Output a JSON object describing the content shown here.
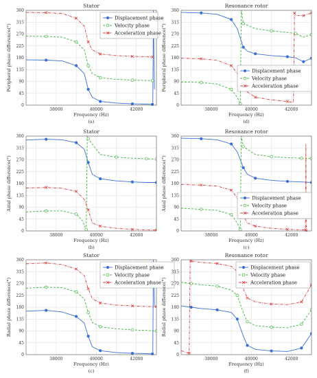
{
  "figure": {
    "colors": {
      "Displacement phase": "#3a6fd8",
      "Velocity phase": "#3cb43c",
      "Acceleration phase": "#d83c3c"
    }
  },
  "chart_data": [
    {
      "type": "line",
      "label": "(a)",
      "title": "Stator",
      "xlabel": "Frequency (Hz)",
      "ylabel": "Peripheral phase difference(°)",
      "xlim": [
        36500,
        43000
      ],
      "ylim": [
        0,
        360
      ],
      "xticks": [
        38000,
        40000,
        42000
      ],
      "yticks": [
        0,
        45,
        90,
        135,
        180,
        225,
        270,
        315,
        360
      ],
      "xtick_labels": [
        "38000",
        "40000",
        "42000"
      ],
      "ytick_labels": [
        "0",
        "45",
        "90",
        "135",
        "180",
        "225",
        "270",
        "315",
        "360"
      ],
      "grid": true,
      "legend_position": "top-right",
      "legend": [
        "Displacement phase",
        "Velocity phase",
        "Acceleration phase"
      ],
      "series": [
        {
          "name": "Displacement phase",
          "style": "solid",
          "marker": "filled-circle",
          "x": [
            36500,
            37500,
            38300,
            39000,
            39400,
            39600,
            39800,
            40200,
            41000,
            41800,
            42500,
            42800
          ],
          "y": [
            172,
            171,
            168,
            150,
            120,
            60,
            30,
            14,
            8,
            5,
            4,
            3
          ],
          "extra": [
            [
              42820,
              3
            ],
            [
              42850,
              360
            ],
            [
              42880,
              160
            ],
            [
              42900,
              60
            ]
          ]
        },
        {
          "name": "Velocity phase",
          "style": "dashed",
          "marker": "open-circle",
          "x": [
            36500,
            37500,
            38300,
            39000,
            39400,
            39600,
            39800,
            40200,
            41000,
            41800,
            42500,
            42800
          ],
          "y": [
            262,
            261,
            258,
            240,
            210,
            150,
            120,
            104,
            98,
            95,
            94,
            93
          ]
        },
        {
          "name": "Acceleration phase",
          "style": "dashdot",
          "marker": "x",
          "x": [
            36500,
            37500,
            38300,
            39000,
            39400,
            39600,
            39800,
            40200,
            41000,
            41800,
            42500,
            42800
          ],
          "y": [
            352,
            351,
            348,
            330,
            300,
            240,
            210,
            194,
            188,
            185,
            184,
            183
          ]
        }
      ]
    },
    {
      "type": "line",
      "label": "(d)",
      "title": "Resonance rotor",
      "xlabel": "Frequency (Hz)",
      "ylabel": "Peripheral phase difference(°)",
      "xlim": [
        36500,
        43000
      ],
      "ylim": [
        0,
        360
      ],
      "xticks": [
        38000,
        40000,
        42000
      ],
      "yticks": [
        0,
        45,
        90,
        135,
        180,
        225,
        270,
        315,
        360
      ],
      "xtick_labels": [
        "38000",
        "40000",
        "42000"
      ],
      "ytick_labels": [
        "0",
        "45",
        "90",
        "135",
        "180",
        "225",
        "270",
        "315",
        "360"
      ],
      "grid": true,
      "legend_position": "right",
      "legend": [
        "Displacement phase",
        "Velocity phase",
        "Acceleration phase"
      ],
      "series": [
        {
          "name": "Displacement phase",
          "style": "solid",
          "marker": "filled-circle",
          "x": [
            36500,
            37500,
            38300,
            39000,
            39300,
            39600,
            39800,
            40200,
            41000,
            41800,
            42200,
            42600,
            43000
          ],
          "y": [
            352,
            350,
            345,
            325,
            290,
            220,
            205,
            195,
            188,
            184,
            180,
            165,
            178
          ]
        },
        {
          "name": "Velocity phase",
          "style": "dashed",
          "marker": "open-circle",
          "x": [
            36500,
            37500,
            38300,
            39000,
            39300,
            39450,
            39500,
            39600,
            40200,
            41000,
            41800,
            42200,
            42600,
            43000
          ],
          "y": [
            88,
            86,
            80,
            60,
            30,
            5,
            360,
            310,
            290,
            282,
            276,
            272,
            258,
            268
          ]
        },
        {
          "name": "Acceleration phase",
          "style": "dashdot",
          "marker": "x",
          "x": [
            36500,
            37500,
            38300,
            39000,
            39300,
            39500,
            39600,
            40200,
            41000,
            41800,
            42100,
            42150,
            42200,
            42600,
            43000
          ],
          "y": [
            178,
            176,
            170,
            150,
            120,
            90,
            60,
            30,
            20,
            14,
            10,
            350,
            340,
            340,
            350
          ]
        }
      ]
    },
    {
      "type": "line",
      "label": "(b)",
      "title": "Stator",
      "xlabel": "Frequency (Hz)",
      "ylabel": "Axial phase difference(°)",
      "xlim": [
        36500,
        43000
      ],
      "ylim": [
        0,
        360
      ],
      "xticks": [
        38000,
        40000,
        42000
      ],
      "yticks": [
        0,
        45,
        90,
        135,
        180,
        225,
        270,
        315,
        360
      ],
      "xtick_labels": [
        "38000",
        "40000",
        "42000"
      ],
      "ytick_labels": [
        "0",
        "45",
        "90",
        "135",
        "180",
        "225",
        "270",
        "315",
        "360"
      ],
      "grid": true,
      "legend_position": "none",
      "legend": [],
      "series": [
        {
          "name": "Displacement phase",
          "style": "solid",
          "marker": "filled-circle",
          "x": [
            36500,
            37500,
            38300,
            39000,
            39400,
            39600,
            39800,
            40200,
            41000,
            41800,
            42500,
            43000
          ],
          "y": [
            345,
            348,
            346,
            335,
            310,
            260,
            215,
            198,
            190,
            186,
            184,
            184
          ]
        },
        {
          "name": "Velocity phase",
          "style": "dashed",
          "marker": "open-circle",
          "x": [
            36500,
            37500,
            38300,
            39000,
            39300,
            39500,
            39550,
            39600,
            40200,
            41000,
            41800,
            42500,
            43000
          ],
          "y": [
            72,
            76,
            76,
            64,
            40,
            5,
            360,
            350,
            290,
            280,
            276,
            274,
            273
          ]
        },
        {
          "name": "Acceleration phase",
          "style": "dashdot",
          "marker": "x",
          "x": [
            36500,
            37500,
            38300,
            39000,
            39400,
            39600,
            39800,
            40200,
            41000,
            41800,
            42500,
            43000
          ],
          "y": [
            163,
            165,
            162,
            150,
            120,
            80,
            30,
            18,
            10,
            6,
            4,
            3
          ]
        }
      ]
    },
    {
      "type": "line",
      "label": "(c)",
      "title": "Resonance rotor",
      "xlabel": "Frequency (Hz)",
      "ylabel": "Axial phase difference(°)",
      "xlim": [
        36500,
        43000
      ],
      "ylim": [
        0,
        360
      ],
      "xticks": [
        38000,
        40000,
        42000
      ],
      "yticks": [
        0,
        45,
        90,
        135,
        180,
        225,
        270,
        315,
        360
      ],
      "xtick_labels": [
        "38000",
        "40000",
        "42000"
      ],
      "ytick_labels": [
        "0",
        "45",
        "90",
        "135",
        "180",
        "225",
        "270",
        "315",
        "360"
      ],
      "grid": true,
      "legend_position": "right",
      "legend": [
        "Displacement phase",
        "Velocity phase",
        "Acceleration phase"
      ],
      "series": [
        {
          "name": "Displacement phase",
          "style": "solid",
          "marker": "filled-circle",
          "x": [
            36500,
            37500,
            38300,
            39000,
            39300,
            39600,
            39800,
            40200,
            41000,
            41800,
            42500,
            43000
          ],
          "y": [
            352,
            350,
            346,
            330,
            300,
            240,
            215,
            200,
            192,
            188,
            186,
            184
          ]
        },
        {
          "name": "Velocity phase",
          "style": "dashed",
          "marker": "open-circle",
          "x": [
            36500,
            37500,
            38300,
            39000,
            39300,
            39450,
            39500,
            39600,
            40200,
            41000,
            41800,
            42500,
            43000
          ],
          "y": [
            86,
            82,
            78,
            62,
            30,
            5,
            360,
            320,
            290,
            282,
            278,
            276,
            275
          ]
        },
        {
          "name": "Acceleration phase",
          "style": "dashdot",
          "marker": "x",
          "x": [
            36500,
            37500,
            38300,
            39000,
            39300,
            39600,
            39800,
            40200,
            41000,
            41800,
            42500,
            42700,
            42720,
            42740
          ],
          "y": [
            176,
            174,
            170,
            155,
            125,
            60,
            30,
            18,
            10,
            6,
            4,
            4,
            330,
            0
          ]
        }
      ]
    },
    {
      "type": "line",
      "label": "(c)",
      "title": "Stator",
      "xlabel": "Frequency (Hz)",
      "ylabel": "Radial phase difference(°)",
      "xlim": [
        36500,
        43000
      ],
      "ylim": [
        0,
        360
      ],
      "xticks": [
        38000,
        40000,
        42000
      ],
      "yticks": [
        0,
        45,
        90,
        135,
        180,
        225,
        270,
        315,
        360
      ],
      "xtick_labels": [
        "38000",
        "40000",
        "42000"
      ],
      "ytick_labels": [
        "0",
        "45",
        "90",
        "135",
        "180",
        "225",
        "270",
        "315",
        "360"
      ],
      "grid": true,
      "legend_position": "top-right",
      "legend": [
        "Displacement phase",
        "Velocity phase",
        "Acceleration phase"
      ],
      "series": [
        {
          "name": "Displacement phase",
          "style": "solid",
          "marker": "filled-circle",
          "x": [
            36500,
            37500,
            38300,
            39000,
            39400,
            39600,
            39800,
            40200,
            41000,
            41800,
            42500,
            42800
          ],
          "y": [
            165,
            168,
            162,
            145,
            120,
            70,
            30,
            15,
            8,
            5,
            4,
            3
          ],
          "extra": [
            [
              42820,
              3
            ],
            [
              42850,
              360
            ],
            [
              42880,
              290
            ],
            [
              42900,
              185
            ]
          ]
        },
        {
          "name": "Velocity phase",
          "style": "dashed",
          "marker": "open-circle",
          "x": [
            36500,
            37500,
            38300,
            39000,
            39400,
            39600,
            39800,
            40200,
            41000,
            41800,
            42500,
            43000
          ],
          "y": [
            252,
            256,
            254,
            238,
            212,
            160,
            122,
            106,
            98,
            94,
            92,
            90
          ]
        },
        {
          "name": "Acceleration phase",
          "style": "dashdot",
          "marker": "x",
          "x": [
            36500,
            37500,
            38300,
            39000,
            39400,
            39600,
            39800,
            40200,
            41000,
            41800,
            42500,
            43000
          ],
          "y": [
            345,
            348,
            342,
            325,
            300,
            250,
            212,
            196,
            188,
            185,
            183,
            182
          ]
        }
      ]
    },
    {
      "type": "line",
      "label": "(f)",
      "title": "Resonance rotor",
      "xlabel": "Frequency (Hz)",
      "ylabel": "Radial phase difference(°)",
      "xlim": [
        36500,
        43000
      ],
      "ylim": [
        0,
        360
      ],
      "xticks": [
        38000,
        40000,
        42000
      ],
      "yticks": [
        0,
        45,
        90,
        135,
        180,
        225,
        270,
        315,
        360
      ],
      "xtick_labels": [
        "38000",
        "40000",
        "42000"
      ],
      "ytick_labels": [
        "0",
        "45",
        "90",
        "135",
        "180",
        "225",
        "270",
        "315",
        "360"
      ],
      "grid": true,
      "legend_position": "top-right",
      "legend": [
        "Displacement phase",
        "Velocity phase",
        "Acceleration phase"
      ],
      "series": [
        {
          "name": "Displacement phase",
          "style": "solid",
          "marker": "filled-circle",
          "x": [
            36500,
            37000,
            37500,
            38300,
            39000,
            39300,
            39600,
            39800,
            40200,
            41000,
            41800,
            42500,
            43000
          ],
          "y": [
            185,
            180,
            175,
            170,
            160,
            135,
            70,
            35,
            20,
            14,
            12,
            25,
            80
          ]
        },
        {
          "name": "Velocity phase",
          "style": "dashed",
          "marker": "open-circle",
          "x": [
            36500,
            37000,
            37500,
            38300,
            39000,
            39300,
            39600,
            39800,
            40200,
            41000,
            41800,
            42500,
            43000
          ],
          "y": [
            275,
            270,
            265,
            260,
            245,
            225,
            160,
            125,
            110,
            104,
            102,
            115,
            170
          ]
        },
        {
          "name": "Acceleration phase",
          "style": "dashdot",
          "marker": "x",
          "x": [
            36500,
            36900,
            36950,
            37000,
            37500,
            38300,
            39000,
            39300,
            39600,
            39800,
            40200,
            41000,
            41800,
            42500,
            43000
          ],
          "y": [
            15,
            5,
            360,
            355,
            350,
            346,
            335,
            315,
            250,
            215,
            200,
            192,
            190,
            200,
            265
          ]
        }
      ]
    }
  ]
}
